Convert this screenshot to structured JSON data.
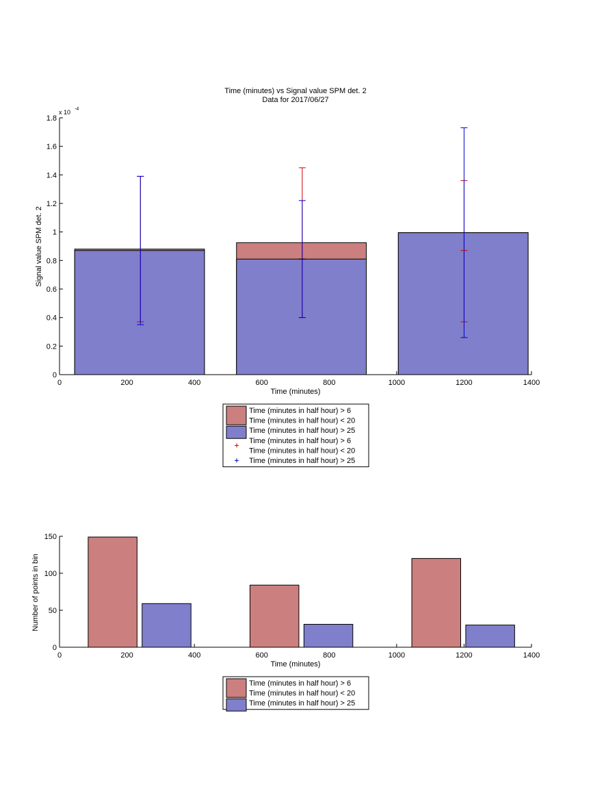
{
  "figure": {
    "background": "#ffffff"
  },
  "chart_data": [
    {
      "type": "bar",
      "title": "Time (minutes) vs Signal value SPM det. 2",
      "subtitle": "Data for 2017/06/27",
      "xlabel": "Time (minutes)",
      "ylabel": "Signal value SPM det. 2",
      "y_multiplier_label": "x 10",
      "y_multiplier_exponent": "-4",
      "xlim": [
        0,
        1400
      ],
      "ylim": [
        0,
        1.8
      ],
      "x_ticks": [
        0,
        200,
        400,
        600,
        800,
        1000,
        1200,
        1400
      ],
      "y_ticks": [
        0,
        0.2,
        0.4,
        0.6,
        0.8,
        1,
        1.2,
        1.4,
        1.6,
        1.8
      ],
      "y_tick_labels": [
        "0",
        "0.2",
        "0.4",
        "0.6",
        "0.8",
        "1",
        "1.2",
        "1.4",
        "1.6",
        "1.8"
      ],
      "grid": false,
      "bars": [
        {
          "x_start": 45,
          "x_end": 430,
          "values": [
            0.88,
            0.87
          ]
        },
        {
          "x_start": 525,
          "x_end": 910,
          "values": [
            0.925,
            0.81
          ]
        },
        {
          "x_start": 1005,
          "x_end": 1390,
          "values": [
            0.995,
            0.995
          ]
        }
      ],
      "series": [
        {
          "name": "Time (minutes in half hour) > 6\nTime (minutes in half hour) < 20",
          "color": "#cc7f7f"
        },
        {
          "name": "Time (minutes in half hour) > 25",
          "color": "#7f7fcc"
        }
      ],
      "error_bars": [
        {
          "name": "Time (minutes in half hour) > 6\nTime (minutes in half hour) < 20",
          "color": "#cc0000",
          "points": [
            {
              "x": 240,
              "low": 0.37,
              "high": 1.39
            },
            {
              "x": 720,
              "low": 0.4,
              "high": 1.45
            },
            {
              "x": 1200,
              "low": 0.37,
              "high": 1.36
            }
          ]
        },
        {
          "name": "Time (minutes in half hour) > 25",
          "color": "#0000cc",
          "points": [
            {
              "x": 240,
              "low": 0.35,
              "high": 1.39
            },
            {
              "x": 720,
              "low": 0.4,
              "high": 1.22
            },
            {
              "x": 1200,
              "low": 0.26,
              "high": 1.73
            }
          ]
        }
      ],
      "extra_markers": [
        {
          "x": 720,
          "y": 0.81,
          "color": "#000000"
        },
        {
          "x": 1200,
          "y": 0.87,
          "color": "#cc0000"
        }
      ],
      "legend": {
        "placement": "below",
        "entries": [
          {
            "kind": "patch",
            "color": "#cc7f7f",
            "lines": [
              "Time (minutes in half hour) > 6",
              "Time (minutes in half hour) < 20"
            ]
          },
          {
            "kind": "patch",
            "color": "#7f7fcc",
            "lines": [
              "Time (minutes in half hour) > 25"
            ]
          },
          {
            "kind": "plus",
            "color": "#cc0000",
            "lines": [
              "Time (minutes in half hour) > 6",
              "Time (minutes in half hour) < 20"
            ]
          },
          {
            "kind": "plus",
            "color": "#0000cc",
            "lines": [
              "Time (minutes in half hour) > 25"
            ]
          }
        ]
      }
    },
    {
      "type": "bar",
      "xlabel": "Time (minutes)",
      "ylabel": "Number of points in bin",
      "xlim": [
        0,
        1400
      ],
      "ylim": [
        0,
        150
      ],
      "x_ticks": [
        0,
        200,
        400,
        600,
        800,
        1000,
        1200,
        1400
      ],
      "y_ticks": [
        0,
        50,
        100,
        150
      ],
      "y_tick_labels": [
        "0",
        "50",
        "100",
        "150"
      ],
      "grid": false,
      "bars": [
        {
          "x_start": 85,
          "x_end": 230,
          "value": 149,
          "color": "#cc7f7f"
        },
        {
          "x_start": 245,
          "x_end": 390,
          "value": 59,
          "color": "#7f7fcc"
        },
        {
          "x_start": 565,
          "x_end": 710,
          "value": 84,
          "color": "#cc7f7f"
        },
        {
          "x_start": 725,
          "x_end": 870,
          "value": 31,
          "color": "#7f7fcc"
        },
        {
          "x_start": 1045,
          "x_end": 1190,
          "value": 120,
          "color": "#cc7f7f"
        },
        {
          "x_start": 1205,
          "x_end": 1350,
          "value": 30,
          "color": "#7f7fcc"
        }
      ],
      "series": [
        {
          "name": "Time (minutes in half hour) > 6\nTime (minutes in half hour) < 20",
          "color": "#cc7f7f"
        },
        {
          "name": "Time (minutes in half hour) > 25",
          "color": "#7f7fcc"
        }
      ],
      "legend": {
        "placement": "below",
        "entries": [
          {
            "kind": "patch",
            "color": "#cc7f7f",
            "lines": [
              "Time (minutes in half hour) > 6",
              "Time (minutes in half hour) < 20"
            ]
          },
          {
            "kind": "patch",
            "color": "#7f7fcc",
            "lines": [
              "Time (minutes in half hour) > 25"
            ]
          }
        ]
      }
    }
  ]
}
